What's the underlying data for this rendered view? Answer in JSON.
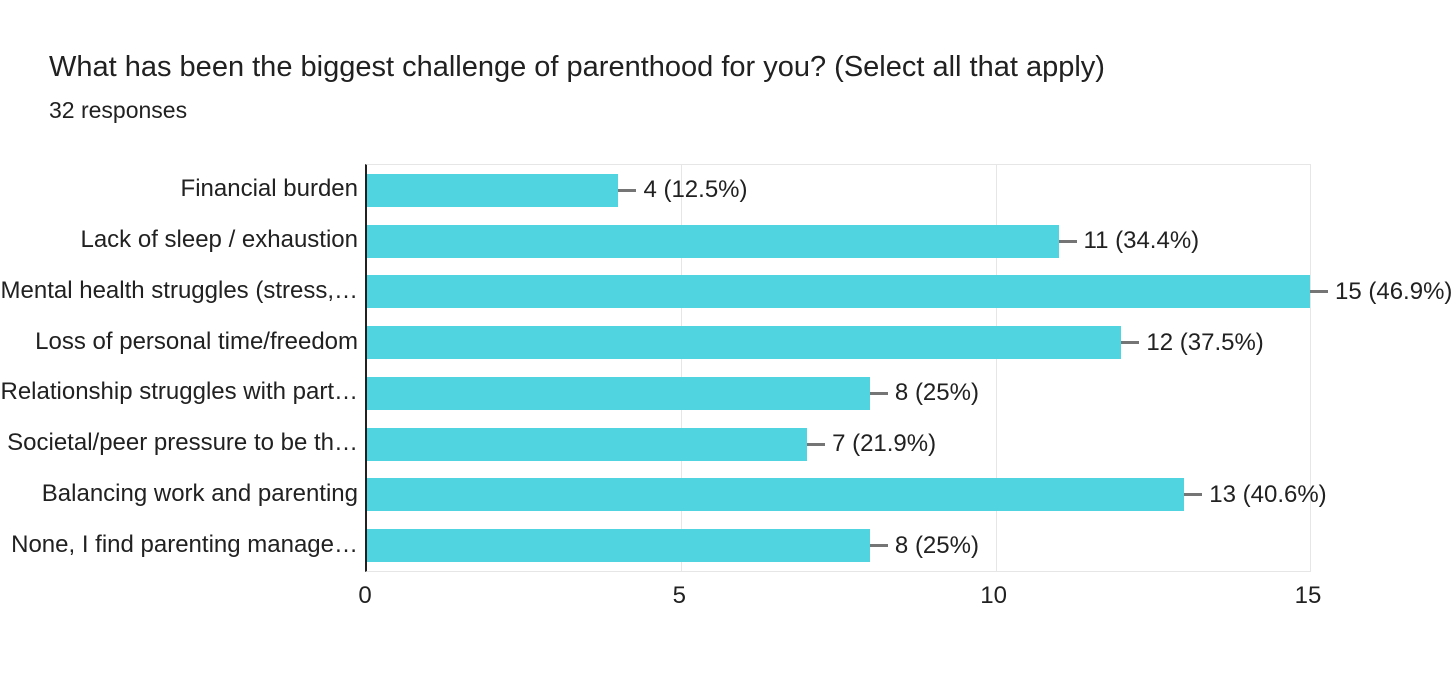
{
  "header": {
    "title": "What has been the biggest challenge of parenthood for you? (Select all that apply)",
    "subtitle": "32 responses"
  },
  "chart_data": {
    "type": "bar",
    "orientation": "horizontal",
    "title": "What has been the biggest challenge of parenthood for you? (Select all that apply)",
    "subtitle": "32 responses",
    "categories": [
      "Financial burden",
      "Lack of sleep / exhaustion",
      "Mental health struggles (stress,…",
      "Loss of personal time/freedom",
      "Relationship struggles with part…",
      "Societal/peer pressure to be th…",
      "Balancing work and parenting",
      "None, I find parenting manage…"
    ],
    "values": [
      4,
      11,
      15,
      12,
      8,
      7,
      13,
      8
    ],
    "value_labels": [
      "4 (12.5%)",
      "11 (34.4%)",
      "15 (46.9%)",
      "12 (37.5%)",
      "8 (25%)",
      "7 (21.9%)",
      "13 (40.6%)",
      "8 (25%)"
    ],
    "xlabel": "",
    "ylabel": "",
    "xlim": [
      0,
      15
    ],
    "xticks": [
      0,
      5,
      10,
      15
    ],
    "grid": true,
    "legend": false,
    "colors": {
      "bar": "#50d5e0",
      "gridline": "#e6e6e6",
      "axis": "#212121",
      "leader": "#757575",
      "text": "#212121"
    }
  }
}
